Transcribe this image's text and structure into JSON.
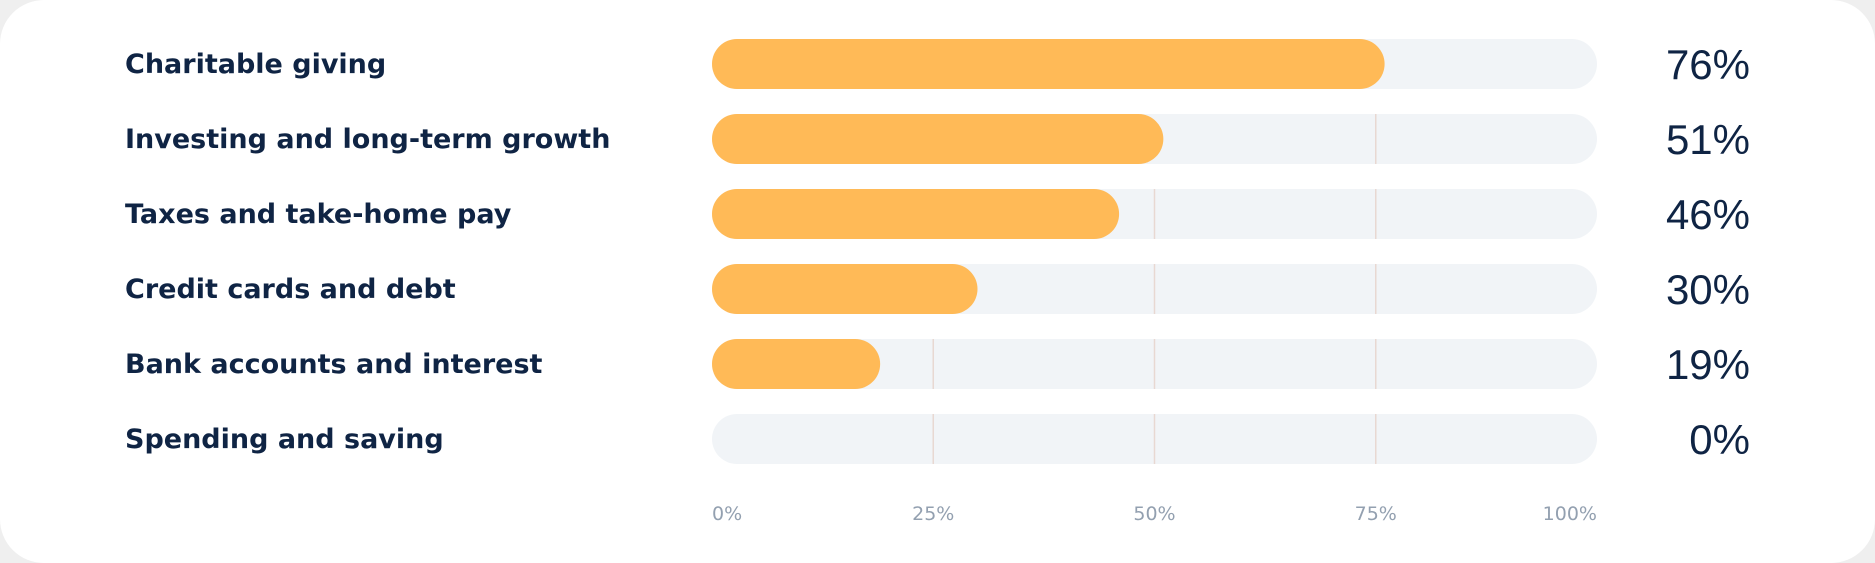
{
  "chart_data": {
    "type": "bar",
    "orientation": "horizontal",
    "categories": [
      "Charitable giving",
      "Investing and long-term growth",
      "Taxes and take-home pay",
      "Credit cards and debt",
      "Bank accounts and interest",
      "Spending and saving"
    ],
    "values": [
      76,
      51,
      46,
      30,
      19,
      0
    ],
    "value_labels": [
      "76%",
      "51%",
      "46%",
      "30%",
      "19%",
      "0%"
    ],
    "xlim": [
      0,
      100
    ],
    "x_ticks": [
      0,
      25,
      50,
      75,
      100
    ],
    "x_tick_labels": [
      "0%",
      "25%",
      "50%",
      "75%",
      "100%"
    ],
    "title": "",
    "xlabel": "",
    "ylabel": "",
    "grid": true,
    "legend": "none",
    "colors": {
      "bar": "#ffba57",
      "track": "#f1f4f7",
      "gridline": "#e8d8d2",
      "text": "#0f2444",
      "tick_text": "#93a0b0"
    }
  }
}
